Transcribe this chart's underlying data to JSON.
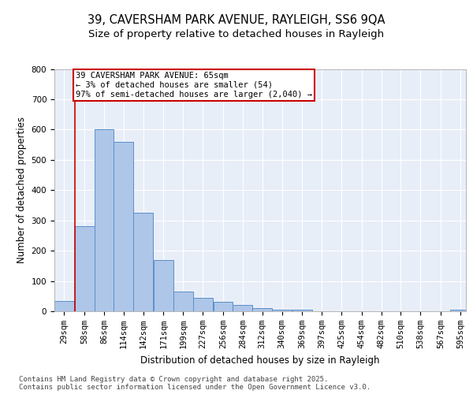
{
  "title_line1": "39, CAVERSHAM PARK AVENUE, RAYLEIGH, SS6 9QA",
  "title_line2": "Size of property relative to detached houses in Rayleigh",
  "xlabel": "Distribution of detached houses by size in Rayleigh",
  "ylabel": "Number of detached properties",
  "bar_color": "#aec6e8",
  "bar_edge_color": "#5b8fc9",
  "background_color": "#e8eef8",
  "grid_color": "#ffffff",
  "annotation_text": "39 CAVERSHAM PARK AVENUE: 65sqm\n← 3% of detached houses are smaller (54)\n97% of semi-detached houses are larger (2,040) →",
  "categories": [
    "29sqm",
    "58sqm",
    "86sqm",
    "114sqm",
    "142sqm",
    "171sqm",
    "199sqm",
    "227sqm",
    "256sqm",
    "284sqm",
    "312sqm",
    "340sqm",
    "369sqm",
    "397sqm",
    "425sqm",
    "454sqm",
    "482sqm",
    "510sqm",
    "538sqm",
    "567sqm",
    "595sqm"
  ],
  "bin_starts": [
    29,
    58,
    86,
    114,
    142,
    171,
    199,
    227,
    256,
    284,
    312,
    340,
    369,
    397,
    425,
    454,
    482,
    510,
    538,
    567,
    595
  ],
  "bin_width": 28,
  "values": [
    35,
    280,
    600,
    560,
    325,
    170,
    65,
    45,
    30,
    20,
    10,
    5,
    5,
    0,
    0,
    0,
    0,
    0,
    0,
    0,
    5
  ],
  "ylim": [
    0,
    800
  ],
  "yticks": [
    0,
    100,
    200,
    300,
    400,
    500,
    600,
    700,
    800
  ],
  "red_line_x": 58,
  "footer_line1": "Contains HM Land Registry data © Crown copyright and database right 2025.",
  "footer_line2": "Contains public sector information licensed under the Open Government Licence v3.0.",
  "title_fontsize": 10.5,
  "subtitle_fontsize": 9.5,
  "axis_label_fontsize": 8.5,
  "tick_fontsize": 7.5,
  "annotation_fontsize": 7.5,
  "footer_fontsize": 6.5
}
